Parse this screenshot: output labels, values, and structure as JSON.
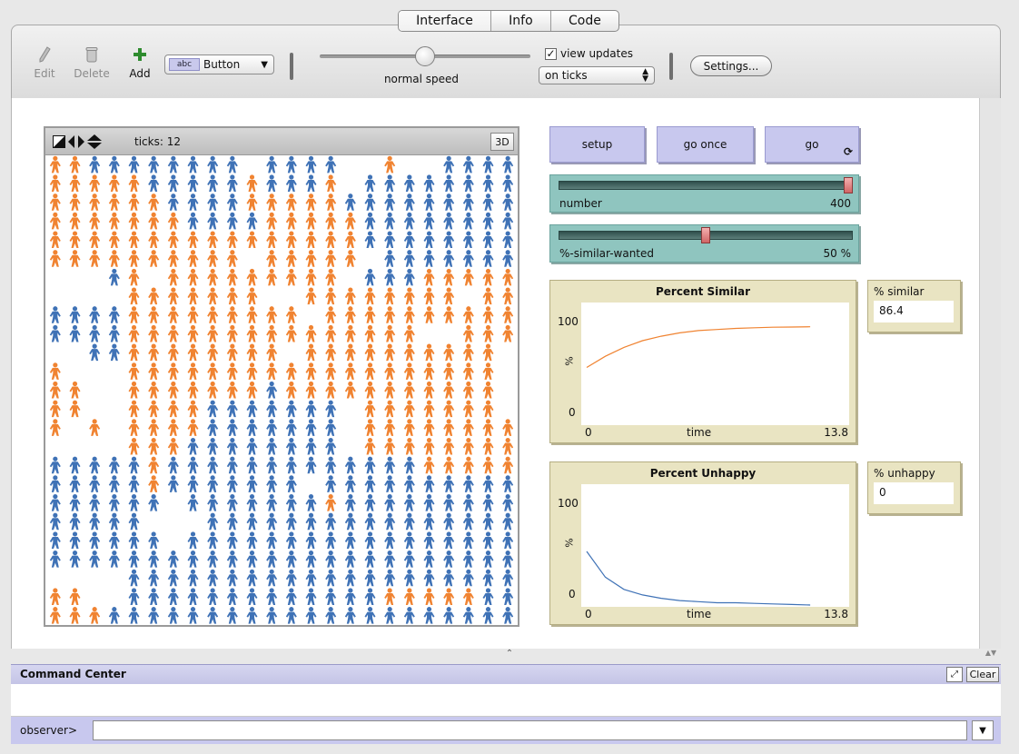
{
  "tabs": [
    {
      "label": "Interface",
      "active": true
    },
    {
      "label": "Info",
      "active": false
    },
    {
      "label": "Code",
      "active": false
    }
  ],
  "toolbar": {
    "edit_label": "Edit",
    "delete_label": "Delete",
    "add_label": "Add",
    "widget_type": "Button",
    "widget_icon_text": "abc",
    "speed_label": "normal speed",
    "speed_value": 0.5,
    "view_updates_label": "view updates",
    "view_updates_checked": true,
    "update_mode": "on ticks",
    "settings_label": "Settings..."
  },
  "view": {
    "ticks_label": "ticks: 12",
    "btn_3d": "3D",
    "colors": {
      "orange": "#f08331",
      "blue": "#3f72b6"
    },
    "rows": [
      "oobbbbbbbb_bbbb__o__bbbb",
      "ooooobbbbbobbbo_bbbbbbbb",
      "oooooobbbbooooobbbbbbbbb",
      "ooooooobbbbooooobbbbbbbb",
      "oooooooooooooooobbbbbbbb",
      "oooooooooo_ooooo_bbbbbbb",
      "___bo_ooooooooo_bbbooooo",
      "____ooooooo__oooooooo_oo",
      "bbbbooooooooo_oooooooooo",
      "bbbbooooooooooooooo__ooo",
      "__bboooooooo_oooooooooo_",
      "o___ooooooooooooooooooo_",
      "oo__ooooooobooooooooooo_",
      "oo__oooobbbbbbb_ooooooo_",
      "o_o_oooobbbbbbb_oooooooo",
      "____ooobbbbbbbb_oooooooo",
      "bbbbbobbbbbbbbbbbbbooooo",
      "bbbbbobbbbbbb_bbbbbbbbbb",
      "bbbbbb_bbbbbbbobbbbbbbbb",
      "bbbbb___bbbbbbbbbbbbbbbb",
      "bbbbbb_bbbbbbbbbbbbbbbbb",
      "bbbbbbbbbbbbbbbbbbbbbbbb",
      "____bbbbbbbbbbbbbbbbbbbb",
      "oo__bbbbbbbbbbbbbooooobb",
      "ooobbbbbbbbbbbbbbbbbbbbb"
    ]
  },
  "buttons": {
    "setup": "setup",
    "go_once": "go once",
    "go": "go",
    "forever_icon": "⟳"
  },
  "sliders": [
    {
      "name": "number",
      "value_text": "400",
      "fraction": 1.0
    },
    {
      "name": "%-similar-wanted",
      "value_text": "50 %",
      "fraction": 0.5
    }
  ],
  "plots": {
    "similar": {
      "title": "Percent Similar",
      "y_max_label": "100",
      "y_min_label": "0",
      "y_label": "%",
      "x_min_label": "0",
      "x_label": "time",
      "x_max_label": "13.8",
      "color": "#f08331"
    },
    "unhappy": {
      "title": "Percent Unhappy",
      "y_max_label": "100",
      "y_min_label": "0",
      "y_label": "%",
      "x_min_label": "0",
      "x_label": "time",
      "x_max_label": "13.8",
      "color": "#3f72b6"
    }
  },
  "chart_data": [
    {
      "type": "line",
      "title": "Percent Similar",
      "xlabel": "time",
      "ylabel": "%",
      "xlim": [
        0,
        13.8
      ],
      "ylim": [
        0,
        100
      ],
      "series": [
        {
          "x": [
            0,
            1,
            2,
            3,
            4,
            5,
            6,
            7,
            8,
            9,
            10,
            11,
            12
          ],
          "values": [
            50,
            60,
            68,
            74,
            78,
            81,
            83,
            84,
            85,
            85.5,
            86,
            86.2,
            86.4
          ]
        }
      ]
    },
    {
      "type": "line",
      "title": "Percent Unhappy",
      "xlabel": "time",
      "ylabel": "%",
      "xlim": [
        0,
        13.8
      ],
      "ylim": [
        0,
        100
      ],
      "series": [
        {
          "x": [
            0,
            1,
            2,
            3,
            4,
            5,
            6,
            7,
            8,
            9,
            10,
            11,
            12
          ],
          "values": [
            48,
            25,
            14,
            9,
            6,
            4,
            3,
            2,
            2,
            1.5,
            1,
            0.5,
            0
          ]
        }
      ]
    }
  ],
  "monitors": {
    "similar": {
      "name": "% similar",
      "value": "86.4"
    },
    "unhappy": {
      "name": "% unhappy",
      "value": "0"
    }
  },
  "command_center": {
    "title": "Command Center",
    "clear_label": "Clear",
    "prompt": "observer>",
    "input_value": ""
  }
}
